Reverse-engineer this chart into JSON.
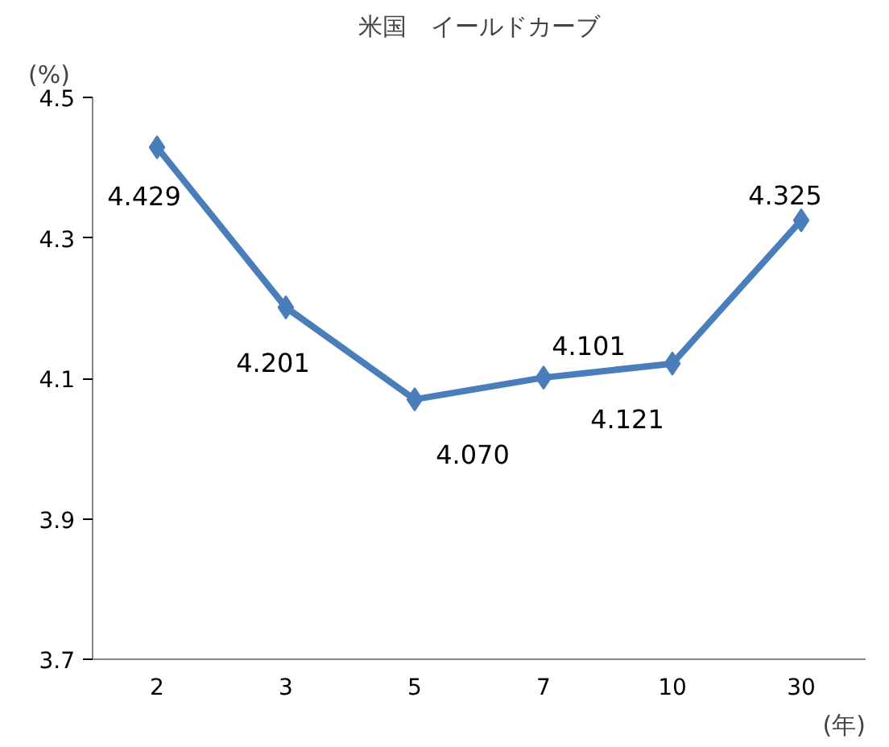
{
  "chart_data": {
    "type": "line",
    "title": "米国　イールドカーブ",
    "ylabel": "(%)",
    "xlabel": "(年)",
    "categories": [
      "2",
      "3",
      "5",
      "7",
      "10",
      "30"
    ],
    "series": [
      {
        "color": "#4a7ebb",
        "values": [
          4.429,
          4.201,
          4.07,
          4.101,
          4.121,
          4.325
        ]
      }
    ],
    "value_labels": [
      "4.429",
      "4.201",
      "4.070",
      "4.101",
      "4.121",
      "4.325"
    ],
    "ylim": [
      3.7,
      4.5
    ],
    "yticks": [
      3.7,
      3.9,
      4.1,
      4.3,
      4.5
    ],
    "grid": false,
    "legend": false,
    "marker": "diamond",
    "line_style": "solid"
  }
}
